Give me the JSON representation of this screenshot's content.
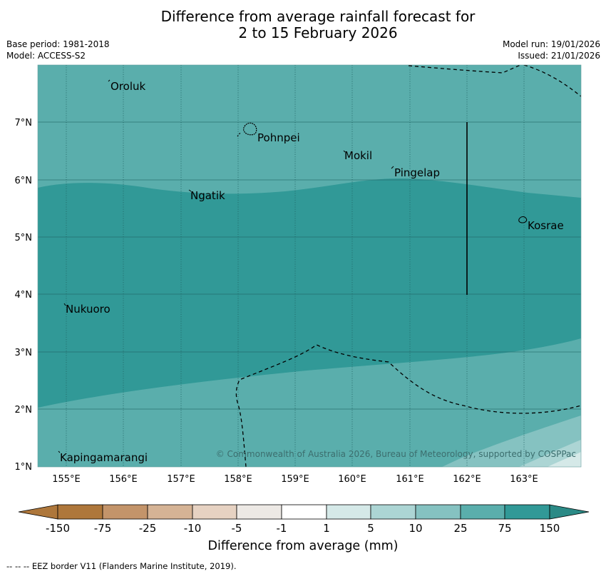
{
  "header": {
    "title_line1": "Difference from average rainfall forecast for",
    "title_line2": "2 to 15 February 2026",
    "base_period": "Base period: 1981-2018",
    "model": "Model: ACCESS-S2",
    "model_run": "Model run: 19/01/2026",
    "issued": "Issued: 21/01/2026"
  },
  "map": {
    "lon_ticks": [
      "155°E",
      "156°E",
      "157°E",
      "158°E",
      "159°E",
      "160°E",
      "161°E",
      "162°E",
      "163°E"
    ],
    "lat_ticks": [
      "7°N",
      "6°N",
      "5°N",
      "4°N",
      "3°N",
      "2°N",
      "1°N"
    ],
    "places": [
      "Oroluk",
      "Pohnpei",
      "Mokil",
      "Pingelap",
      "Ngatik",
      "Kosrae",
      "Nukuoro",
      "Kapingamarangi"
    ],
    "copyright": "© Commonwealth of Australia 2026, Bureau of Meteorology, supported by COSPPac"
  },
  "colorbar": {
    "labels": [
      "-150",
      "-75",
      "-25",
      "-10",
      "-5",
      "-1",
      "1",
      "5",
      "10",
      "25",
      "75",
      "150"
    ],
    "colors": [
      "#ae773b",
      "#c3946a",
      "#d5b395",
      "#e6d2c2",
      "#ede9e5",
      "#ffffff",
      "#d5e9e8",
      "#acd5d4",
      "#85c2c1",
      "#5aaeac",
      "#319997",
      "#2b8a86"
    ],
    "title": "Difference from average (mm)"
  },
  "footnote": "--  --  -- EEZ border V11 (Flanders Marine Institute, 2019)."
}
